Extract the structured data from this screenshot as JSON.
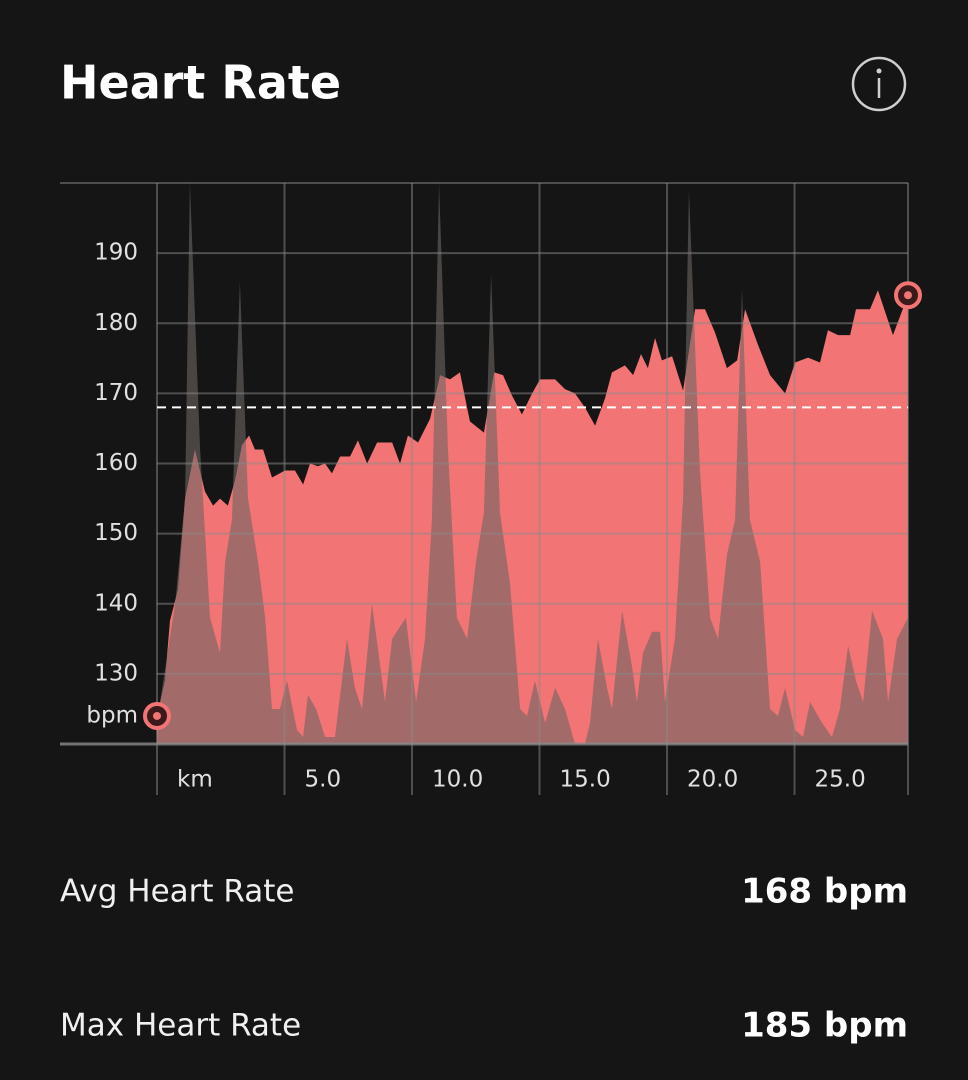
{
  "chart_data": {
    "type": "area",
    "title": "Heart Rate",
    "y_unit": "bpm",
    "ylim": [
      120,
      200
    ],
    "yticks": [
      130,
      140,
      150,
      160,
      170,
      180,
      190
    ],
    "xlim": [
      0,
      29.45
    ],
    "xticks": [
      {
        "value": 0,
        "label": "km"
      },
      {
        "value": 5,
        "label": "5.0"
      },
      {
        "value": 10,
        "label": "10.0"
      },
      {
        "value": 15,
        "label": "15.0"
      },
      {
        "value": 20,
        "label": "20.0"
      },
      {
        "value": 25,
        "label": "25.0"
      },
      {
        "value": 29.45,
        "label": ""
      }
    ],
    "grid": true,
    "avg_line": 168,
    "series": [
      {
        "color": "#f27474",
        "x": [
          0,
          0.31,
          0.51,
          0.82,
          1.1,
          1.49,
          1.88,
          2.2,
          2.47,
          2.78,
          3.06,
          3.33,
          3.61,
          3.84,
          4.16,
          4.51,
          5.02,
          5.41,
          5.73,
          6.0,
          6.31,
          6.59,
          6.86,
          7.18,
          7.57,
          7.88,
          8.24,
          8.63,
          9.22,
          9.53,
          9.84,
          10.24,
          10.71,
          11.1,
          11.49,
          11.88,
          12.27,
          12.82,
          13.22,
          13.57,
          13.92,
          14.31,
          14.71,
          15.02,
          15.61,
          16.0,
          16.39,
          16.78,
          17.18,
          17.57,
          17.84,
          18.35,
          18.67,
          18.98,
          19.25,
          19.53,
          19.8,
          20.2,
          20.63,
          21.1,
          21.49,
          21.88,
          22.35,
          22.75,
          23.06,
          23.57,
          24.04,
          24.63,
          25.02,
          25.53,
          26.0,
          26.31,
          26.71,
          27.18,
          27.41,
          27.96,
          28.27,
          28.86,
          29.45
        ],
        "values": [
          124,
          129,
          137.6,
          142,
          155,
          162,
          156,
          154,
          155,
          154,
          157.6,
          162.6,
          164,
          162,
          162,
          158,
          159,
          159,
          157,
          160,
          159.6,
          160,
          158.6,
          161,
          161,
          163.3,
          160,
          163,
          163,
          160,
          164,
          163,
          166.4,
          172.6,
          172,
          173,
          166,
          164.4,
          173,
          172.6,
          169.7,
          167,
          170,
          172,
          172,
          170.6,
          170,
          168,
          165.4,
          169.3,
          173,
          174,
          172.6,
          175.6,
          173.6,
          177.9,
          174.7,
          175.3,
          170.4,
          182,
          182,
          178.7,
          173.6,
          174.7,
          182,
          176.9,
          172.6,
          170,
          174.4,
          175.1,
          174.4,
          179,
          178.3,
          178.3,
          182,
          182,
          184.7,
          178.3,
          184
        ]
      },
      {
        "color": "#6d6663",
        "x": [
          0,
          0.12,
          0.71,
          1.1,
          1.29,
          1.69,
          2.08,
          2.47,
          2.67,
          2.94,
          3.25,
          3.57,
          3.96,
          4.24,
          4.51,
          4.82,
          5.1,
          5.49,
          5.73,
          5.92,
          6.24,
          6.59,
          6.98,
          7.45,
          7.76,
          8.04,
          8.43,
          8.94,
          9.22,
          9.76,
          10.16,
          10.51,
          10.78,
          11.06,
          11.41,
          11.76,
          12.16,
          12.51,
          12.82,
          13.1,
          13.45,
          13.84,
          14.24,
          14.51,
          14.82,
          15.22,
          15.61,
          16.0,
          16.39,
          16.78,
          16.98,
          17.29,
          17.65,
          17.84,
          18.24,
          18.63,
          18.82,
          19.06,
          19.41,
          19.73,
          19.92,
          20.31,
          20.63,
          20.86,
          21.29,
          21.69,
          22.0,
          22.35,
          22.67,
          22.94,
          23.25,
          23.65,
          24.04,
          24.35,
          24.63,
          25.02,
          25.33,
          25.61,
          26.08,
          26.47,
          26.78,
          27.1,
          27.41,
          27.69,
          28.04,
          28.47,
          28.67,
          29.02,
          29.45
        ],
        "values": [
          120,
          126,
          140,
          155,
          200,
          162,
          138,
          133,
          146,
          152,
          186,
          155,
          146,
          138,
          125,
          125,
          129,
          122,
          121,
          127,
          125,
          121,
          121,
          135,
          128,
          125,
          140,
          126,
          135,
          138,
          126,
          135,
          152,
          200,
          162,
          138,
          135,
          146,
          153,
          187,
          153,
          143,
          125,
          124,
          129,
          123,
          128,
          125,
          120,
          120,
          123,
          135,
          128,
          125,
          139,
          131,
          126,
          133,
          136,
          136,
          126,
          135,
          155,
          199,
          159,
          138,
          135,
          147,
          152,
          185,
          152,
          146,
          125,
          124,
          128,
          122,
          121,
          126,
          123,
          121,
          125,
          134,
          129,
          126,
          139,
          135,
          126,
          135,
          138
        ]
      }
    ]
  },
  "stats": [
    {
      "label": "Avg Heart Rate",
      "value": "168 bpm"
    },
    {
      "label": "Max Heart Rate",
      "value": "185 bpm"
    }
  ]
}
